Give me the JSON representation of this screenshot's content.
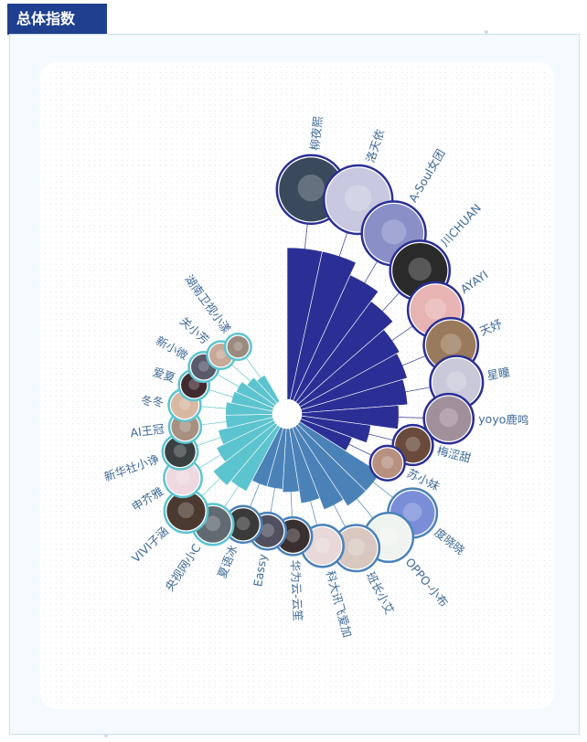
{
  "header": {
    "title": "总体指数"
  },
  "colors": {
    "title_bg": "#1f3f8f",
    "dark_blue": "#2f2f99",
    "mid_blue": "#4a7db6",
    "teal": "#5cc4cf",
    "label": "#3f6a99"
  },
  "chart_data": {
    "type": "radial-bar",
    "title": "",
    "value_scale": "relative (no axis printed); values estimated from bar length",
    "categories": [
      "柳夜熙",
      "洛天依",
      "A-Soul女团",
      "川CHUAN",
      "AYAYI",
      "天妤",
      "星瞳",
      "yoyo鹿鸣",
      "梅涩甜",
      "苏小妹",
      "度晓晓",
      "OPPO-小布",
      "班长小艾",
      "科大讯飞爱加",
      "华为云-云笙",
      "Eassy",
      "夏语冰",
      "央视网小C",
      "VIVI子涵",
      "申芥雅",
      "新华社小诤",
      "AI王冠",
      "冬冬",
      "爱夏",
      "新小微",
      "关小芳",
      "湖南卫视小漾"
    ],
    "values": [
      100,
      100,
      91,
      83,
      75,
      73,
      70,
      64,
      46,
      36,
      63,
      63,
      58,
      50,
      42,
      40,
      40,
      48,
      52,
      42,
      37,
      31,
      31,
      28,
      27,
      23,
      20
    ],
    "bar_colors": [
      "#2b2f95",
      "#2b2f95",
      "#2b2f95",
      "#2b2f95",
      "#2b2f95",
      "#2b2f95",
      "#2b2f95",
      "#2b2f95",
      "#2b2f95",
      "#2b2f95",
      "#4a82b8",
      "#4a82b8",
      "#4a82b8",
      "#4a82b8",
      "#4a82b8",
      "#4a82b8",
      "#4a82b8",
      "#5cc4cf",
      "#5cc4cf",
      "#5cc4cf",
      "#5cc4cf",
      "#5cc4cf",
      "#5cc4cf",
      "#5cc4cf",
      "#5cc4cf",
      "#5cc4cf",
      "#5cc4cf"
    ],
    "avatar_colors": [
      "#3a4a5c",
      "#c8c8e0",
      "#8a8fc8",
      "#2a2a2a",
      "#e7b3b3",
      "#9a7a5c",
      "#c9c9d9",
      "#a0909a",
      "#6a4a3a",
      "#b89080",
      "#7a8ed8",
      "#f0f4f0",
      "#d8c8c0",
      "#e8d8d8",
      "#3a3030",
      "#505060",
      "#3a3a3a",
      "#606a70",
      "#4a3a30",
      "#f0d8e0",
      "#3a4040",
      "#a89080",
      "#d8b8a0",
      "#402a30",
      "#5a5a6a",
      "#c8a898",
      "#9a8a80"
    ]
  }
}
